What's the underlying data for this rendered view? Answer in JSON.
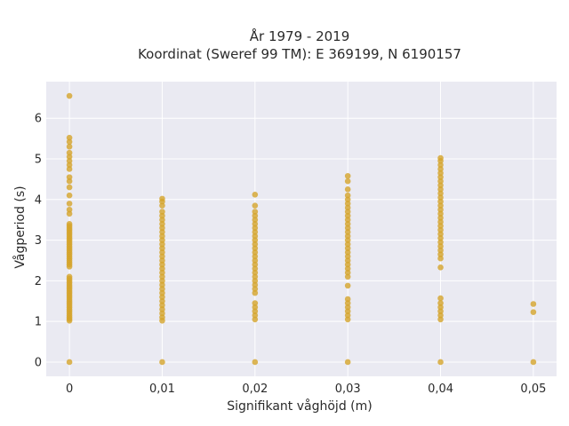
{
  "chart_data": {
    "type": "scatter",
    "title": [
      "År 1979 - 2019",
      "Koordinat (Sweref 99 TM): E 369199, N 6190157"
    ],
    "xlabel": "Signifikant våghöjd (m)",
    "ylabel": "Vågperiod (s)",
    "x_ticks": [
      "0",
      "0,01",
      "0,02",
      "0,03",
      "0,04",
      "0,05"
    ],
    "y_ticks": [
      "0",
      "1",
      "2",
      "3",
      "4",
      "5",
      "6"
    ],
    "xlim": [
      -0.0025,
      0.0525
    ],
    "ylim": [
      -0.35,
      6.9
    ],
    "grid": true,
    "marker_color": "#D4A42A",
    "series": [
      {
        "x": 0.0,
        "values": [
          0,
          1.02,
          1.06,
          1.1,
          1.15,
          1.2,
          1.25,
          1.3,
          1.35,
          1.4,
          1.45,
          1.5,
          1.55,
          1.6,
          1.65,
          1.7,
          1.75,
          1.8,
          1.85,
          1.9,
          1.95,
          2.0,
          2.05,
          2.1,
          2.35,
          2.4,
          2.45,
          2.5,
          2.55,
          2.6,
          2.65,
          2.7,
          2.75,
          2.8,
          2.85,
          2.9,
          2.95,
          3.0,
          3.05,
          3.1,
          3.15,
          3.2,
          3.25,
          3.3,
          3.35,
          3.4,
          3.65,
          3.75,
          3.9,
          4.1,
          4.3,
          4.45,
          4.55,
          4.75,
          4.85,
          4.95,
          5.05,
          5.15,
          5.3,
          5.42,
          5.52,
          6.55
        ]
      },
      {
        "x": 0.01,
        "values": [
          0,
          1.02,
          1.1,
          1.2,
          1.3,
          1.4,
          1.5,
          1.6,
          1.7,
          1.8,
          1.9,
          2.0,
          2.1,
          2.2,
          2.3,
          2.4,
          2.5,
          2.6,
          2.7,
          2.8,
          2.9,
          3.0,
          3.1,
          3.2,
          3.3,
          3.4,
          3.5,
          3.6,
          3.7,
          3.85,
          3.95,
          4.02
        ]
      },
      {
        "x": 0.02,
        "values": [
          0,
          1.05,
          1.15,
          1.25,
          1.35,
          1.45,
          1.7,
          1.8,
          1.9,
          2.0,
          2.1,
          2.2,
          2.3,
          2.4,
          2.5,
          2.6,
          2.7,
          2.8,
          2.9,
          3.0,
          3.1,
          3.2,
          3.3,
          3.4,
          3.5,
          3.6,
          3.7,
          3.85,
          4.12
        ]
      },
      {
        "x": 0.03,
        "values": [
          0,
          1.05,
          1.15,
          1.25,
          1.35,
          1.45,
          1.55,
          1.88,
          2.1,
          2.2,
          2.3,
          2.4,
          2.5,
          2.6,
          2.7,
          2.8,
          2.9,
          3.0,
          3.1,
          3.2,
          3.3,
          3.4,
          3.5,
          3.6,
          3.7,
          3.8,
          3.9,
          4.0,
          4.1,
          4.25,
          4.45,
          4.58
        ]
      },
      {
        "x": 0.04,
        "values": [
          0,
          1.05,
          1.15,
          1.25,
          1.35,
          1.45,
          1.57,
          2.33,
          2.55,
          2.65,
          2.75,
          2.85,
          2.95,
          3.05,
          3.15,
          3.25,
          3.35,
          3.45,
          3.55,
          3.65,
          3.75,
          3.85,
          3.95,
          4.05,
          4.15,
          4.25,
          4.35,
          4.45,
          4.55,
          4.65,
          4.75,
          4.85,
          4.95,
          5.02
        ]
      },
      {
        "x": 0.05,
        "values": [
          0,
          1.23,
          1.43
        ]
      }
    ]
  }
}
